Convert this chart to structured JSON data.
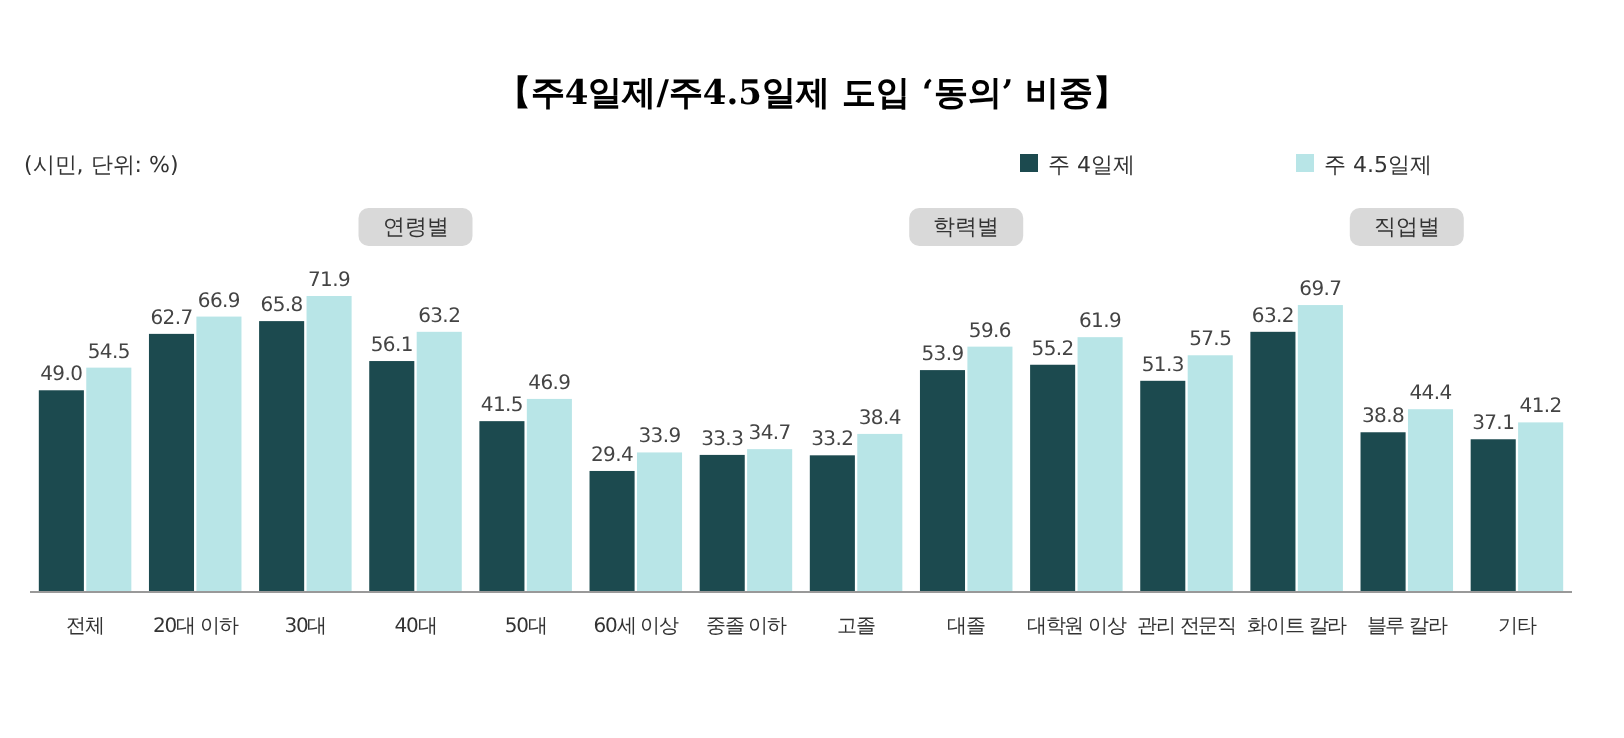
{
  "chart_data": {
    "type": "bar",
    "title": "【주4일제/주4.5일제 도입 ‘동의’ 비중】",
    "categories": [
      "전체",
      "20대 이하",
      "30대",
      "40대",
      "50대",
      "60세 이상",
      "중졸 이하",
      "고졸",
      "대졸",
      "대학원 이상",
      "관리 전문직",
      "화이트 칼라",
      "블루 칼라",
      "기타"
    ],
    "series": [
      {
        "name": "주 4일제",
        "color": "#1c4a4f",
        "values": [
          49.0,
          62.7,
          65.8,
          56.1,
          41.5,
          29.4,
          33.3,
          33.2,
          53.9,
          55.2,
          51.3,
          63.2,
          38.8,
          37.1
        ],
        "value_labels": [
          "49.0",
          "62.7",
          "65.8",
          "56.1",
          "41.5",
          "29.4",
          "33.3",
          "33.2",
          "53.9",
          "55.2",
          "51.3",
          "63.2",
          "38.8",
          "37.1"
        ]
      },
      {
        "name": "주 4.5일제",
        "color": "#b8e5e7",
        "values": [
          54.5,
          66.9,
          71.9,
          63.2,
          46.9,
          33.9,
          34.7,
          38.4,
          59.6,
          61.9,
          57.5,
          69.7,
          44.4,
          41.2
        ],
        "value_labels": [
          "54.5",
          "66.9",
          "71.9",
          "63.2",
          "46.9",
          "33.9",
          "34.7",
          "38.4",
          "59.6",
          "61.9",
          "57.5",
          "69.7",
          "44.4",
          "41.2"
        ]
      }
    ],
    "legend": "top right",
    "annotations": [
      "(시민, 단위: %)",
      "연령별",
      "학력별",
      "직업별"
    ]
  }
}
